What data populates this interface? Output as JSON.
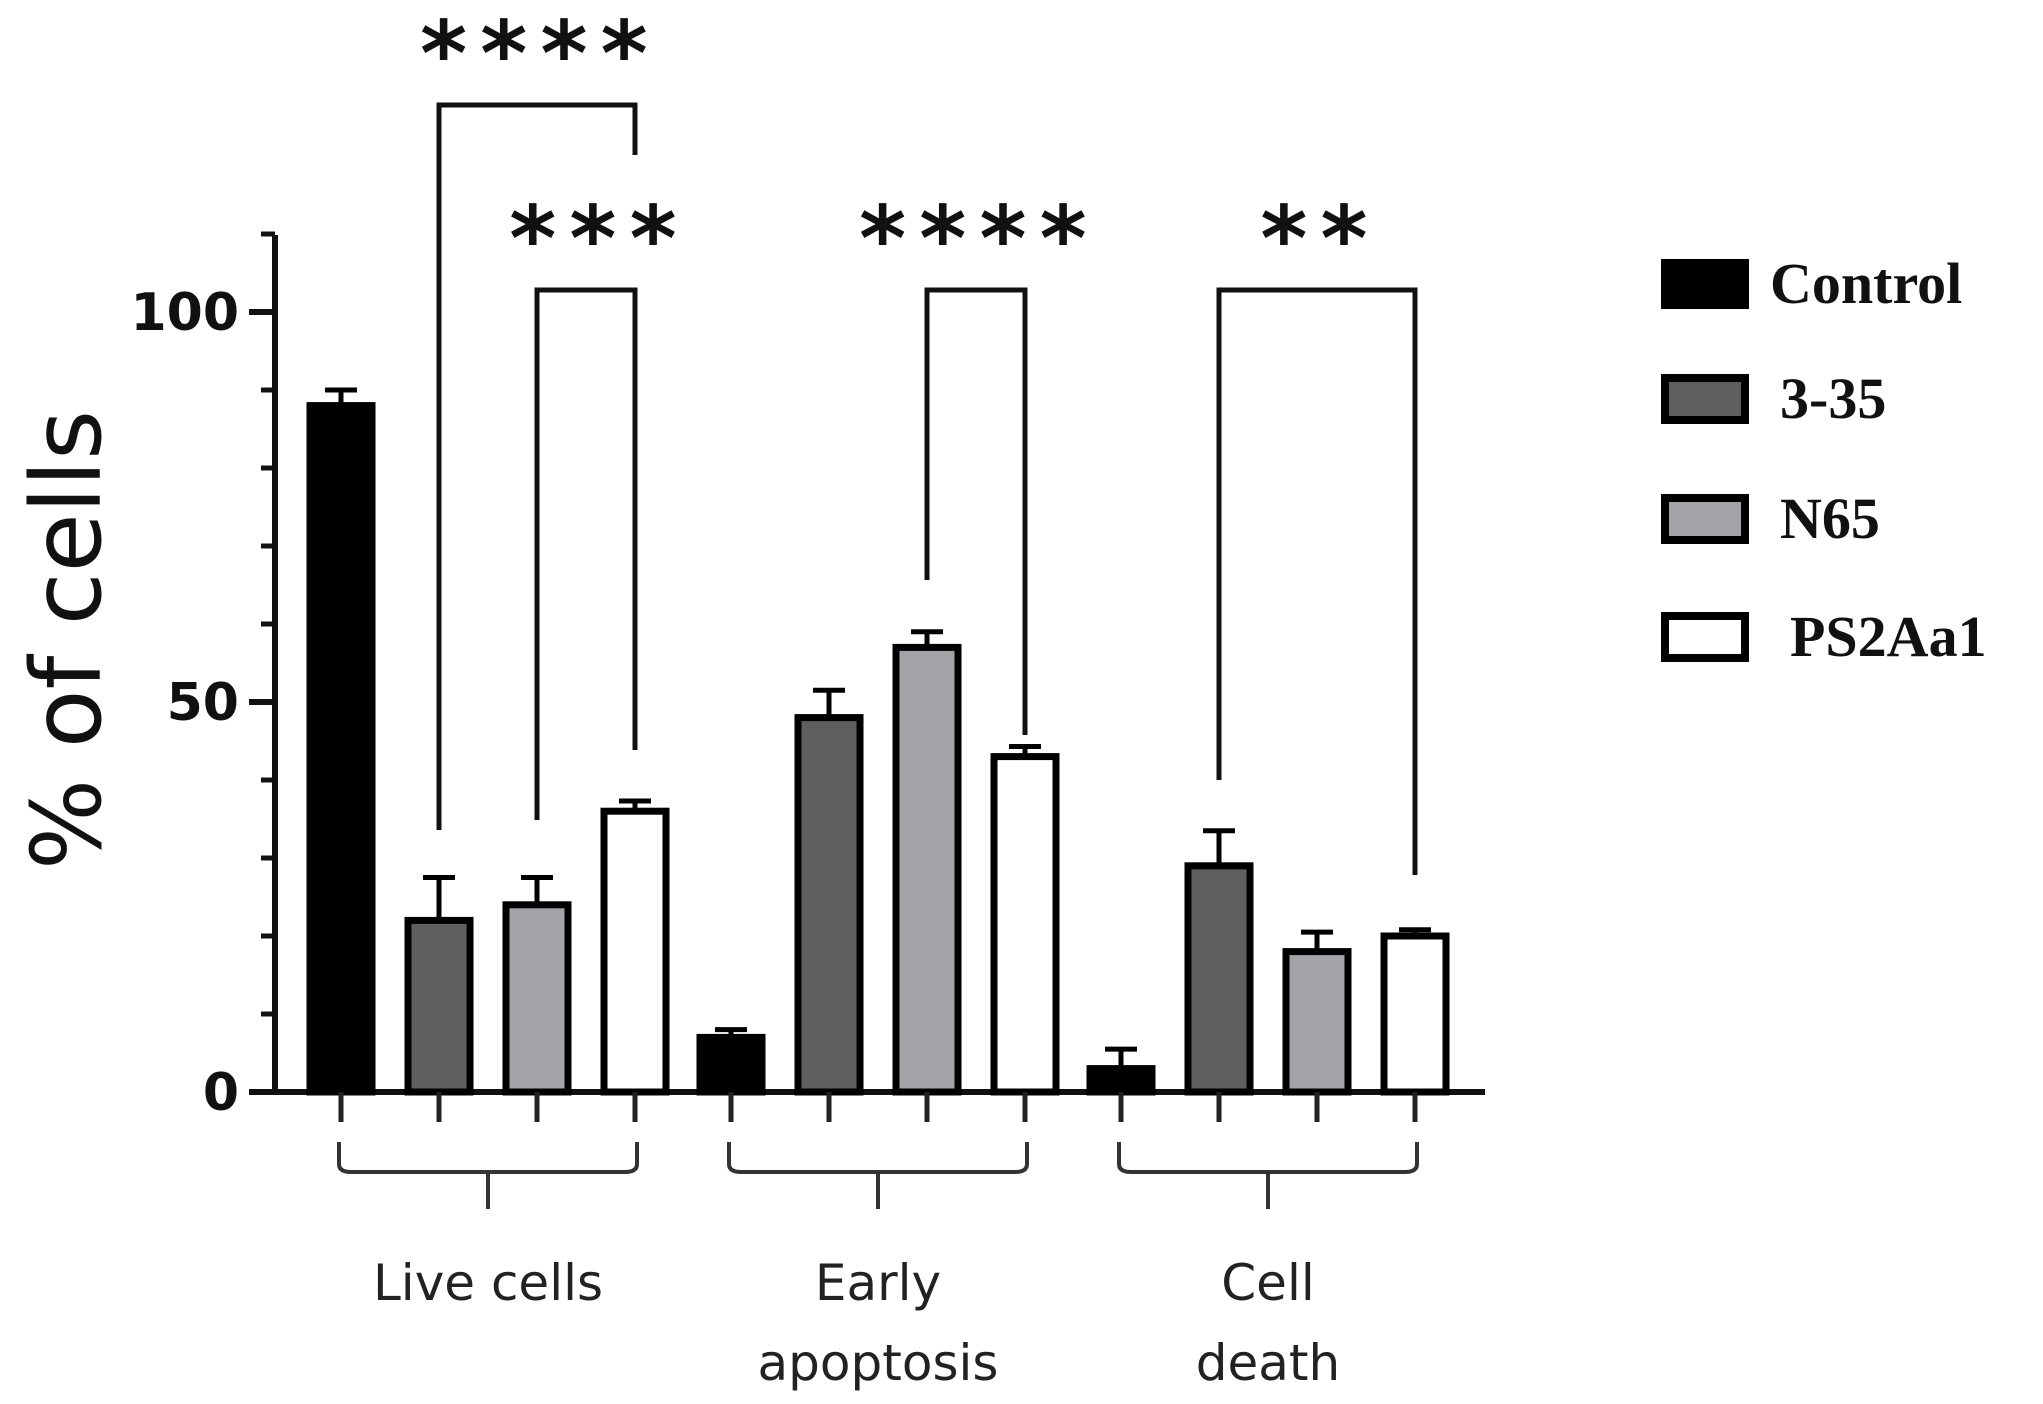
{
  "chart_data": {
    "type": "bar",
    "title": "",
    "xlabel": "",
    "ylabel": "% of cells",
    "ylim": [
      0,
      110
    ],
    "yticks": [
      0,
      50,
      100
    ],
    "categories": [
      "Live cells",
      "Early apoptosis",
      "Cell death"
    ],
    "category_label_lines": [
      [
        "Live cells"
      ],
      [
        "Early",
        "apoptosis"
      ],
      [
        "Cell",
        "death"
      ]
    ],
    "series": [
      {
        "name": "Control",
        "fill": "#000000",
        "values": [
          88,
          7,
          3
        ],
        "errors": [
          2,
          1,
          2.5
        ]
      },
      {
        "name": "3-35",
        "fill": "#5f5f5f",
        "values": [
          22,
          48,
          29
        ],
        "errors": [
          5.5,
          3.5,
          4.5
        ]
      },
      {
        "name": "N65",
        "fill": "#a4a4a8",
        "values": [
          24,
          57,
          18
        ],
        "errors": [
          3.5,
          2,
          2.5
        ]
      },
      {
        "name": "PS2Aa1",
        "fill": "#ffffff",
        "values": [
          36,
          43,
          20
        ],
        "errors": [
          1.3,
          1.3,
          0.8
        ]
      }
    ],
    "significance": [
      {
        "category": 0,
        "from_series": 1,
        "to_series": 3,
        "label": "****",
        "level": 2
      },
      {
        "category": 0,
        "from_series": 2,
        "to_series": 3,
        "label": "***",
        "level": 1
      },
      {
        "category": 1,
        "from_series": 2,
        "to_series": 3,
        "label": "****",
        "level": 1
      },
      {
        "category": 2,
        "from_series": 1,
        "to_series": 3,
        "label": "**",
        "level": 1
      }
    ],
    "legend": {
      "position": "right"
    },
    "grid": false
  }
}
